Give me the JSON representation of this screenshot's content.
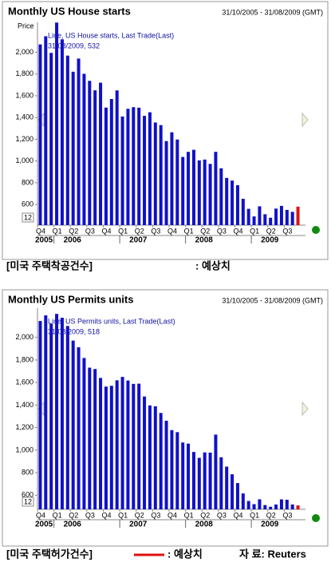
{
  "chart_data": [
    {
      "type": "bar",
      "title": "Monthly US House starts",
      "date_range": "31/10/2005 - 31/08/2009 (GMT)",
      "y_label": "Price",
      "legend_lines": [
        "Line, US House starts, Last Trade(Last)",
        "31/08/2009, 532"
      ],
      "corner_label": "12",
      "categories": [
        "Q4",
        null,
        null,
        "Q1",
        null,
        null,
        "Q2",
        null,
        null,
        "Q3",
        null,
        null,
        "Q4",
        null,
        null,
        "Q1",
        null,
        null,
        "Q2",
        null,
        null,
        "Q3",
        null,
        null,
        "Q4",
        null,
        null,
        "Q1",
        null,
        null,
        "Q2",
        null,
        null,
        "Q3",
        null,
        null,
        "Q4",
        null,
        null,
        "Q1",
        null,
        null,
        "Q2",
        null,
        null,
        "Q3",
        null,
        null
      ],
      "years": [
        "2005",
        "2006",
        "2007",
        "2008",
        "2009"
      ],
      "series": [
        {
          "color": "#1010c8",
          "values": [
            2072,
            2147,
            1994,
            2273,
            2119,
            1969,
            1821,
            1942,
            1802,
            1737,
            1650,
            1720,
            1491,
            1570,
            1649,
            1409,
            1480,
            1495,
            1490,
            1415,
            1448,
            1354,
            1330,
            1183,
            1264,
            1197,
            1037,
            1084,
            1103,
            1005,
            1013,
            973,
            1084,
            933,
            844,
            820,
            777,
            652,
            560,
            490,
            583,
            510,
            478,
            562,
            587,
            550,
            532,
            null
          ]
        },
        {
          "color": "#e01010",
          "values": [
            null,
            null,
            null,
            null,
            null,
            null,
            null,
            null,
            null,
            null,
            null,
            null,
            null,
            null,
            null,
            null,
            null,
            null,
            null,
            null,
            null,
            null,
            null,
            null,
            null,
            null,
            null,
            null,
            null,
            null,
            null,
            null,
            null,
            null,
            null,
            null,
            null,
            null,
            null,
            null,
            null,
            null,
            null,
            null,
            null,
            null,
            null,
            580
          ]
        }
      ],
      "ylim": [
        410,
        2275
      ],
      "yticks": [
        {
          "value": 2000,
          "label": "2,000"
        },
        {
          "value": 1800,
          "label": "1,800"
        },
        {
          "value": 1600,
          "label": "1,600"
        },
        {
          "value": 1400,
          "label": "1,400"
        },
        {
          "value": 1200,
          "label": "1,200"
        },
        {
          "value": 1000,
          "label": "1,000"
        },
        800,
        600
      ],
      "caption": "[미국 주택착공건수]",
      "legend_caption": ": 예상치"
    },
    {
      "type": "bar",
      "title": "Monthly US Permits units",
      "date_range": "31/10/2005 - 31/08/2009 (GMT)",
      "legend_lines": [
        "Line, US Permits units, Last Trade(Last)",
        "31/08/2009, 518"
      ],
      "corner_label": "12",
      "categories": [
        "Q4",
        null,
        null,
        "Q1",
        null,
        null,
        "Q2",
        null,
        null,
        "Q3",
        null,
        null,
        "Q4",
        null,
        null,
        "Q1",
        null,
        null,
        "Q2",
        null,
        null,
        "Q3",
        null,
        null,
        "Q4",
        null,
        null,
        "Q1",
        null,
        null,
        "Q2",
        null,
        null,
        "Q3",
        null,
        null,
        "Q4",
        null,
        null,
        "Q1",
        null,
        null,
        "Q2",
        null,
        null,
        "Q3",
        null,
        null
      ],
      "years": [
        "2005",
        "2006",
        "2007",
        "2008",
        "2009"
      ],
      "series": [
        {
          "color": "#1010c8",
          "values": [
            2146,
            2196,
            2121,
            2209,
            2175,
            2102,
            1972,
            1913,
            1818,
            1732,
            1720,
            1641,
            1564,
            1571,
            1620,
            1650,
            1618,
            1588,
            1590,
            1476,
            1397,
            1389,
            1330,
            1261,
            1178,
            1160,
            1068,
            1058,
            984,
            932,
            980,
            978,
            1138,
            937,
            854,
            786,
            708,
            616,
            549,
            521,
            564,
            513,
            498,
            518,
            563,
            560,
            518,
            null
          ]
        },
        {
          "color": "#e01010",
          "values": [
            null,
            null,
            null,
            null,
            null,
            null,
            null,
            null,
            null,
            null,
            null,
            null,
            null,
            null,
            null,
            null,
            null,
            null,
            null,
            null,
            null,
            null,
            null,
            null,
            null,
            null,
            null,
            null,
            null,
            null,
            null,
            null,
            null,
            null,
            null,
            null,
            null,
            null,
            null,
            null,
            null,
            null,
            null,
            null,
            null,
            null,
            null,
            510
          ]
        }
      ],
      "ylim": [
        475,
        2260
      ],
      "yticks": [
        {
          "value": 2000,
          "label": "2,000"
        },
        {
          "value": 1800,
          "label": "1,800"
        },
        {
          "value": 1600,
          "label": "1,600"
        },
        {
          "value": 1400,
          "label": "1,400"
        },
        {
          "value": 1200,
          "label": "1,200"
        },
        {
          "value": 1000,
          "label": "1,000"
        },
        800,
        600
      ],
      "caption": "[미국 주택허가건수]",
      "legend_caption": ": 예상치",
      "source": "자 료: Reuters"
    }
  ]
}
